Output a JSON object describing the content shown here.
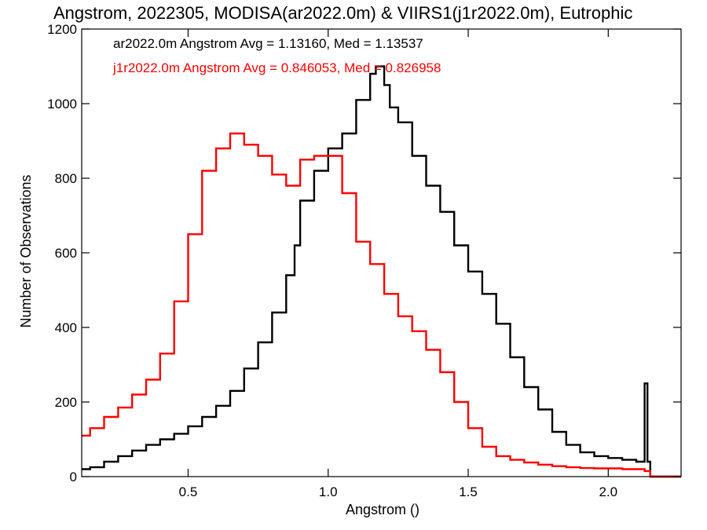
{
  "chart_data": {
    "type": "line",
    "title": "Angstrom, 2022305, MODISA(ar2022.0m) & VIIRS1(j1r2022.0m), Eutrophic",
    "xlabel": "Angstrom ()",
    "ylabel": "Number of Observations",
    "xlim": [
      0.12,
      2.26
    ],
    "ylim": [
      0,
      1200
    ],
    "x_ticks": [
      0.5,
      1.0,
      1.5,
      2.0
    ],
    "x_tick_labels": [
      "0.5",
      "1.0",
      "1.5",
      "2.0"
    ],
    "y_ticks": [
      0,
      200,
      400,
      600,
      800,
      1000,
      1200
    ],
    "y_tick_labels": [
      "0",
      "200",
      "400",
      "600",
      "800",
      "1000",
      "1200"
    ],
    "grid": false,
    "step": true,
    "series": [
      {
        "name": "ar2022.0m",
        "color": "#000000",
        "x": [
          0.12,
          0.15,
          0.2,
          0.25,
          0.3,
          0.35,
          0.4,
          0.45,
          0.5,
          0.55,
          0.6,
          0.65,
          0.7,
          0.75,
          0.8,
          0.85,
          0.88,
          0.9,
          0.95,
          1.0,
          1.05,
          1.1,
          1.15,
          1.17,
          1.2,
          1.22,
          1.25,
          1.3,
          1.35,
          1.4,
          1.45,
          1.5,
          1.55,
          1.6,
          1.65,
          1.7,
          1.75,
          1.8,
          1.85,
          1.9,
          1.95,
          2.0,
          2.05,
          2.1,
          2.125,
          2.13,
          2.14,
          2.15,
          2.26
        ],
        "values": [
          20,
          25,
          40,
          55,
          70,
          85,
          100,
          115,
          135,
          160,
          190,
          230,
          290,
          360,
          440,
          540,
          620,
          740,
          820,
          880,
          920,
          1010,
          1080,
          1100,
          1050,
          990,
          950,
          860,
          780,
          710,
          620,
          550,
          490,
          410,
          320,
          240,
          180,
          120,
          85,
          65,
          55,
          50,
          45,
          40,
          40,
          250,
          40,
          0,
          0
        ]
      },
      {
        "name": "j1r2022.0m",
        "color": "#ff0000",
        "x": [
          0.12,
          0.15,
          0.2,
          0.25,
          0.3,
          0.35,
          0.4,
          0.45,
          0.5,
          0.55,
          0.6,
          0.65,
          0.7,
          0.75,
          0.8,
          0.85,
          0.9,
          0.95,
          1.0,
          1.05,
          1.1,
          1.15,
          1.2,
          1.25,
          1.3,
          1.35,
          1.4,
          1.45,
          1.5,
          1.55,
          1.6,
          1.65,
          1.7,
          1.75,
          1.8,
          1.85,
          1.9,
          1.95,
          2.0,
          2.05,
          2.1,
          2.13,
          2.15,
          2.26
        ],
        "values": [
          110,
          130,
          160,
          185,
          220,
          260,
          330,
          470,
          650,
          820,
          880,
          920,
          890,
          860,
          810,
          780,
          850,
          860,
          860,
          760,
          630,
          570,
          490,
          430,
          390,
          340,
          280,
          200,
          130,
          80,
          55,
          45,
          38,
          32,
          28,
          25,
          23,
          22,
          22,
          20,
          20,
          15,
          0,
          0
        ]
      }
    ],
    "annotations": [
      {
        "text": "ar2022.0m Angstrom Avg = 1.13160, Med = 1.13537",
        "color": "#000000"
      },
      {
        "text": "j1r2022.0m Angstrom Avg = 0.846053, Med = 0.826958",
        "color": "#ff0000"
      }
    ]
  }
}
